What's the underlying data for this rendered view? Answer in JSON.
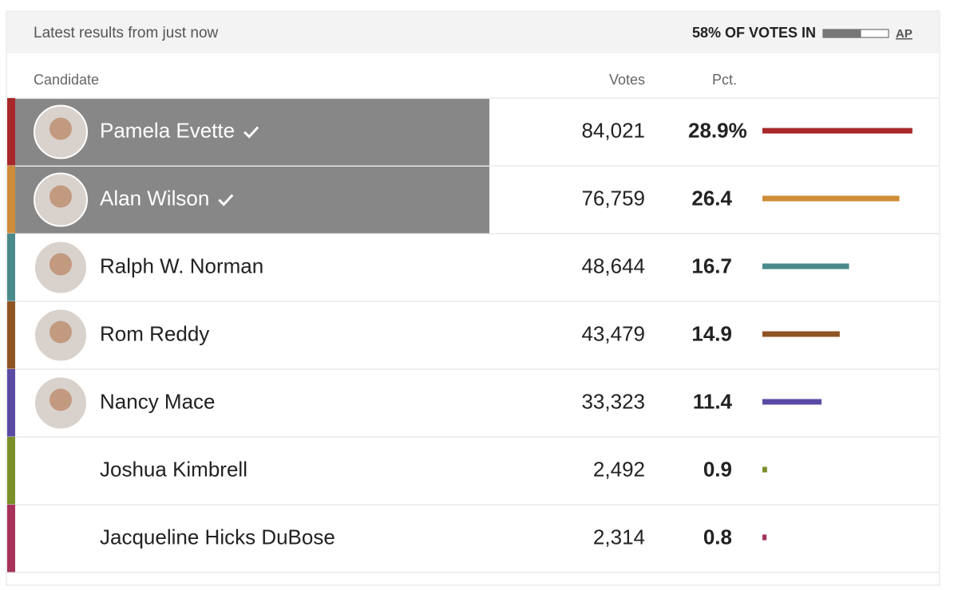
{
  "header": {
    "title": "Latest results from just now",
    "reporting": {
      "value": 58,
      "label": "58% OF VOTES IN"
    },
    "source": "AP"
  },
  "table": {
    "columns": [
      "Candidate",
      "Votes",
      "Pct."
    ],
    "rows": [
      {
        "name": "Pamela Evette",
        "votes": "84,021",
        "pct": {
          "value": 28.9,
          "label": "28.9%"
        },
        "color": "#a8282a",
        "winner": true,
        "photo": true
      },
      {
        "name": "Alan Wilson",
        "votes": "76,759",
        "pct": 26.4,
        "color": "#cf8d3a",
        "winner": true,
        "photo": true
      },
      {
        "name": "Ralph W. Norman",
        "votes": "48,644",
        "pct": 16.7,
        "color": "#4a8a8a",
        "winner": false,
        "photo": true
      },
      {
        "name": "Rom Reddy",
        "votes": "43,479",
        "pct": 14.9,
        "color": "#8e5424",
        "winner": false,
        "photo": true
      },
      {
        "name": "Nancy Mace",
        "votes": "33,323",
        "pct": 11.4,
        "color": "#5a4aa3",
        "winner": false,
        "photo": true
      },
      {
        "name": "Joshua Kimbrell",
        "votes": "2,492",
        "pct": 0.9,
        "color": "#7a8f2a",
        "winner": false,
        "photo": false
      },
      {
        "name": "Jacqueline Hicks DuBose",
        "votes": "2,314",
        "pct": 0.8,
        "color": "#a8325a",
        "winner": false,
        "photo": false
      }
    ]
  }
}
